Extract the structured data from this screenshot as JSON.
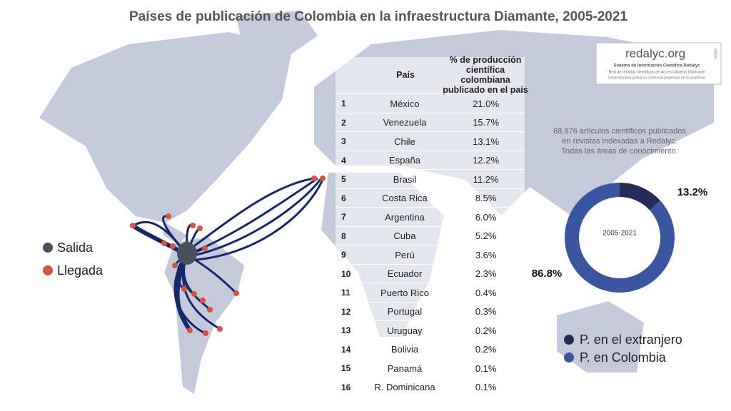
{
  "title": "Países de publicación de Colombia en la infraestructura Diamante, 2005-2021",
  "map_legend": [
    "Salida",
    "Llegada"
  ],
  "logo": {
    "name": "redalyc.org",
    "side": "UAEM",
    "lines": [
      "Sistema de Información Científica Redalyc",
      "Red de revistas científicas de Acceso Abierto Diamante",
      "Infraestructura global no comercial propiedad de la academia"
    ]
  },
  "table": {
    "headers": [
      "País",
      "% de producción científica colombiana publicado en el país"
    ],
    "rows": [
      [
        "1",
        "México",
        "21.0%"
      ],
      [
        "2",
        "Venezuela",
        "15.7%"
      ],
      [
        "3",
        "Chile",
        "13.1%"
      ],
      [
        "4",
        "España",
        "12.2%"
      ],
      [
        "5",
        "Brasil",
        "11.2%"
      ],
      [
        "6",
        "Costa Rica",
        "8.5%"
      ],
      [
        "7",
        "Argentina",
        "6.0%"
      ],
      [
        "8",
        "Cuba",
        "5.2%"
      ],
      [
        "9",
        "Perú",
        "3.6%"
      ],
      [
        "10",
        "Ecuador",
        "2.3%"
      ],
      [
        "11",
        "Puerto Rico",
        "0.4%"
      ],
      [
        "12",
        "Portugal",
        "0.3%"
      ],
      [
        "13",
        "Uruguay",
        "0.2%"
      ],
      [
        "14",
        "Bolivia",
        "0.2%"
      ],
      [
        "15",
        "Panamá",
        "0.1%"
      ],
      [
        "16",
        "R.  Dominicana",
        "0.1%"
      ]
    ]
  },
  "chart_data": {
    "type": "donut",
    "annotation": [
      "68,876 artículos científicos publicados",
      "en revistas indexadas a Redalyc.",
      "Todas las áreas de conocimiento."
    ],
    "center_label": "2005-2021",
    "categories": [
      "P. en el extranjero",
      "P. en Colombia"
    ],
    "values": [
      13.2,
      86.8
    ],
    "value_labels": [
      "13.2%",
      "86.8%"
    ],
    "colors": [
      "#252d57",
      "#3a56a0"
    ]
  }
}
